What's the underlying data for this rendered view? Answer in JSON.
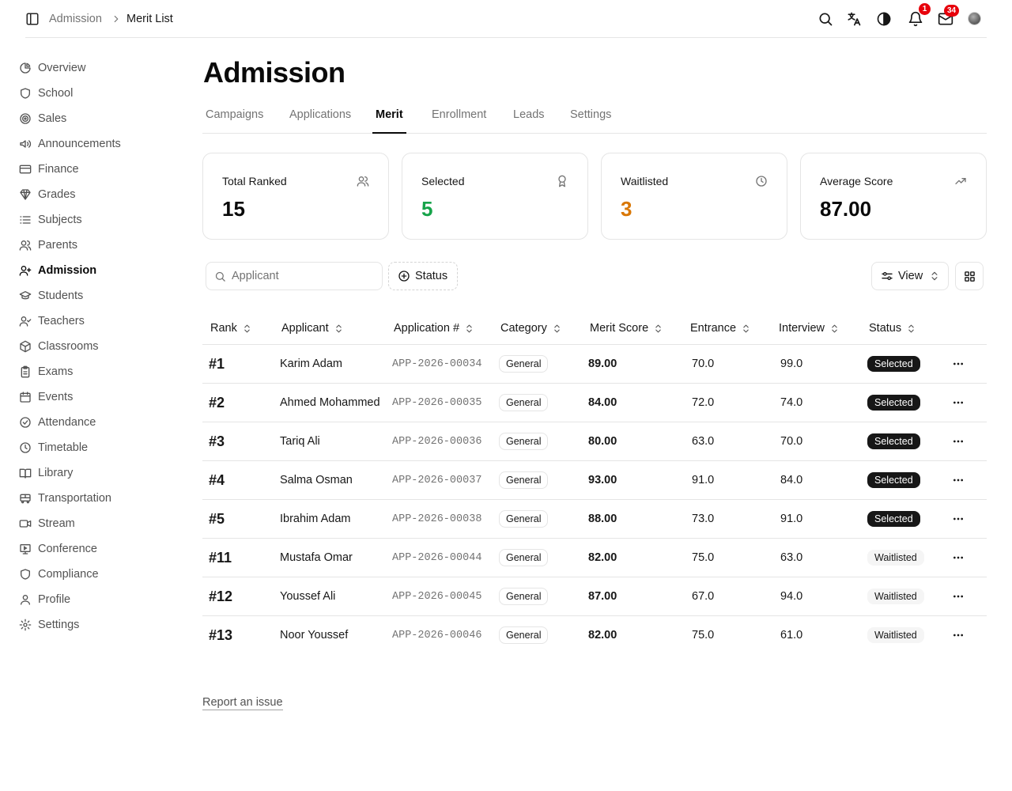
{
  "breadcrumb": {
    "parent": "Admission",
    "current": "Merit List"
  },
  "header": {
    "notifications_count": "1",
    "messages_count": "34"
  },
  "sidebar": {
    "items": [
      {
        "label": "Overview",
        "icon": "pie-chart-icon"
      },
      {
        "label": "School",
        "icon": "shield-icon"
      },
      {
        "label": "Sales",
        "icon": "target-icon"
      },
      {
        "label": "Announcements",
        "icon": "megaphone-icon"
      },
      {
        "label": "Finance",
        "icon": "credit-card-icon"
      },
      {
        "label": "Grades",
        "icon": "badge-icon"
      },
      {
        "label": "Subjects",
        "icon": "list-icon"
      },
      {
        "label": "Parents",
        "icon": "users-icon"
      },
      {
        "label": "Admission",
        "icon": "user-plus-icon",
        "active": true
      },
      {
        "label": "Students",
        "icon": "graduation-cap-icon"
      },
      {
        "label": "Teachers",
        "icon": "user-check-icon"
      },
      {
        "label": "Classrooms",
        "icon": "box-icon"
      },
      {
        "label": "Exams",
        "icon": "clipboard-icon"
      },
      {
        "label": "Events",
        "icon": "calendar-icon"
      },
      {
        "label": "Attendance",
        "icon": "check-circle-icon"
      },
      {
        "label": "Timetable",
        "icon": "clock-icon"
      },
      {
        "label": "Library",
        "icon": "book-icon"
      },
      {
        "label": "Transportation",
        "icon": "bus-icon"
      },
      {
        "label": "Stream",
        "icon": "video-icon"
      },
      {
        "label": "Conference",
        "icon": "presentation-icon"
      },
      {
        "label": "Compliance",
        "icon": "shield-icon"
      },
      {
        "label": "Profile",
        "icon": "user-icon"
      },
      {
        "label": "Settings",
        "icon": "gear-icon"
      }
    ]
  },
  "page": {
    "title": "Admission"
  },
  "tabs": [
    {
      "label": "Campaigns"
    },
    {
      "label": "Applications"
    },
    {
      "label": "Merit",
      "active": true
    },
    {
      "label": "Enrollment"
    },
    {
      "label": "Leads"
    },
    {
      "label": "Settings"
    }
  ],
  "stats": [
    {
      "label": "Total Ranked",
      "value": "15",
      "icon": "users-icon",
      "color": "#0a0a0a"
    },
    {
      "label": "Selected",
      "value": "5",
      "icon": "award-icon",
      "color": "#16a34a"
    },
    {
      "label": "Waitlisted",
      "value": "3",
      "icon": "clock-icon",
      "color": "#d97706"
    },
    {
      "label": "Average Score",
      "value": "87.00",
      "icon": "trending-up-icon",
      "color": "#0a0a0a"
    }
  ],
  "toolbar": {
    "search_placeholder": "Applicant",
    "status_filter_label": "Status",
    "view_label": "View"
  },
  "table": {
    "columns": [
      "Rank",
      "Applicant",
      "Application #",
      "Category",
      "Merit Score",
      "Entrance",
      "Interview",
      "Status"
    ],
    "rows": [
      {
        "rank": "#1",
        "applicant": "Karim Adam",
        "app_no": "APP-2026-00034",
        "category": "General",
        "merit": "89.00",
        "entrance": "70.0",
        "interview": "99.0",
        "status": "Selected"
      },
      {
        "rank": "#2",
        "applicant": "Ahmed Mohammed",
        "app_no": "APP-2026-00035",
        "category": "General",
        "merit": "84.00",
        "entrance": "72.0",
        "interview": "74.0",
        "status": "Selected"
      },
      {
        "rank": "#3",
        "applicant": "Tariq Ali",
        "app_no": "APP-2026-00036",
        "category": "General",
        "merit": "80.00",
        "entrance": "63.0",
        "interview": "70.0",
        "status": "Selected"
      },
      {
        "rank": "#4",
        "applicant": "Salma Osman",
        "app_no": "APP-2026-00037",
        "category": "General",
        "merit": "93.00",
        "entrance": "91.0",
        "interview": "84.0",
        "status": "Selected"
      },
      {
        "rank": "#5",
        "applicant": "Ibrahim Adam",
        "app_no": "APP-2026-00038",
        "category": "General",
        "merit": "88.00",
        "entrance": "73.0",
        "interview": "91.0",
        "status": "Selected"
      },
      {
        "rank": "#11",
        "applicant": "Mustafa Omar",
        "app_no": "APP-2026-00044",
        "category": "General",
        "merit": "82.00",
        "entrance": "75.0",
        "interview": "63.0",
        "status": "Waitlisted"
      },
      {
        "rank": "#12",
        "applicant": "Youssef Ali",
        "app_no": "APP-2026-00045",
        "category": "General",
        "merit": "87.00",
        "entrance": "67.0",
        "interview": "94.0",
        "status": "Waitlisted"
      },
      {
        "rank": "#13",
        "applicant": "Noor Youssef",
        "app_no": "APP-2026-00046",
        "category": "General",
        "merit": "82.00",
        "entrance": "75.0",
        "interview": "61.0",
        "status": "Waitlisted"
      }
    ]
  },
  "footer": {
    "report_label": "Report an issue"
  }
}
